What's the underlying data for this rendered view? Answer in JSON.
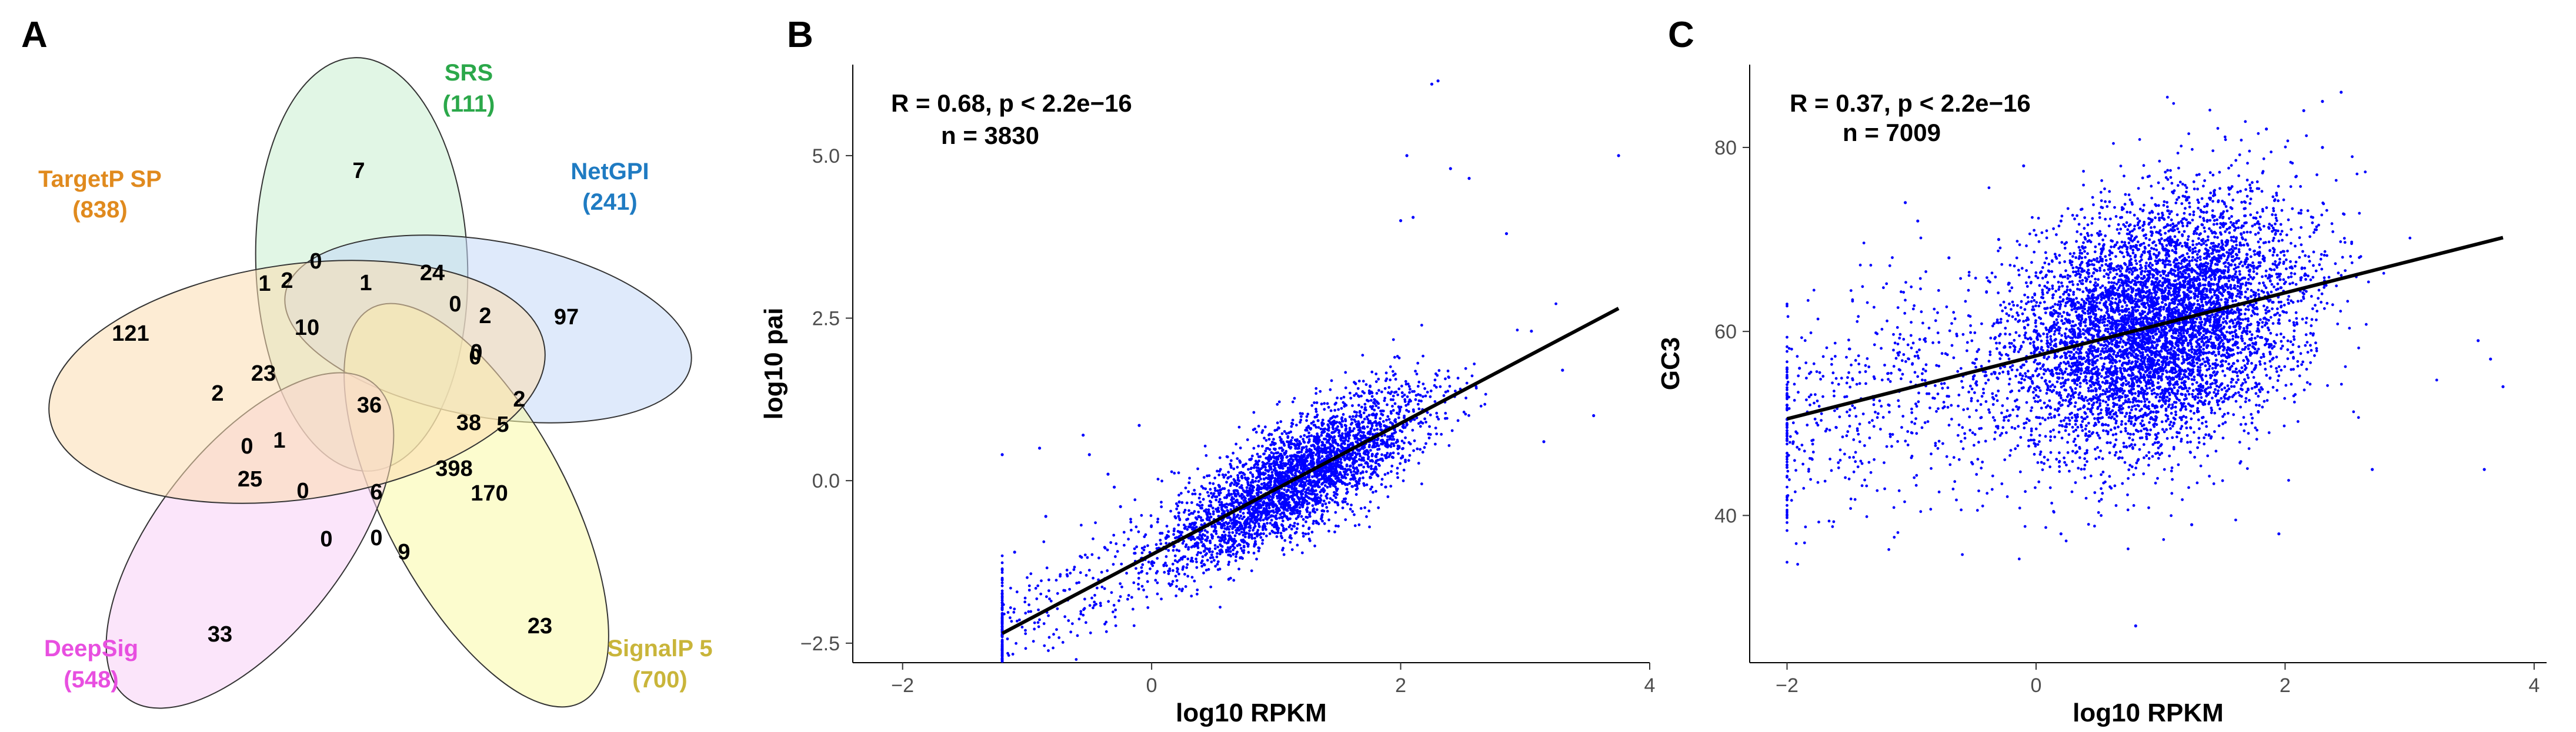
{
  "panels": {
    "a": {
      "letter": "A",
      "sets": [
        {
          "name": "SRS",
          "count": "(111)",
          "color": "#2BA84A",
          "fill": "#c9efcf"
        },
        {
          "name": "NetGPI",
          "count": "(241)",
          "color": "#1F7BC2",
          "fill": "#c4d8f7"
        },
        {
          "name": "SignalP 5",
          "count": "(700)",
          "color": "#C9B53A",
          "fill": "#fafaa6"
        },
        {
          "name": "DeepSig",
          "count": "(548)",
          "color": "#E84FE0",
          "fill": "#f8cff5"
        },
        {
          "name": "TargetP SP",
          "count": "(838)",
          "color": "#E08A1E",
          "fill": "#fbdcb0"
        }
      ],
      "region_counts": [
        "7",
        "24",
        "0",
        "1",
        "2",
        "0",
        "1",
        "10",
        "0",
        "2",
        "97",
        "121",
        "0",
        "2",
        "23",
        "36",
        "38",
        "2",
        "5",
        "0",
        "1",
        "398",
        "25",
        "170",
        "0",
        "6",
        "0",
        "0",
        "9",
        "33",
        "23"
      ]
    },
    "b": {
      "letter": "B",
      "annotation_line1": "R = 0.68, p < 2.2e−16",
      "annotation_line2": "n = 3830"
    },
    "c": {
      "letter": "C",
      "annotation_line1": "R = 0.37, p < 2.2e−16",
      "annotation_line2": "n = 7009"
    }
  },
  "chart_data": [
    {
      "type": "venn",
      "title": "",
      "sets": [
        "SRS",
        "NetGPI",
        "SignalP 5",
        "DeepSig",
        "TargetP SP"
      ],
      "set_sizes": [
        111,
        241,
        700,
        548,
        838
      ],
      "region_values": [
        7,
        24,
        0,
        1,
        2,
        0,
        1,
        10,
        0,
        2,
        97,
        121,
        0,
        2,
        23,
        36,
        38,
        2,
        5,
        0,
        1,
        398,
        25,
        170,
        0,
        6,
        0,
        0,
        9,
        33,
        23
      ]
    },
    {
      "type": "scatter",
      "title": "",
      "xlabel": "log10 RPKM",
      "ylabel": "log10  pai",
      "xlim": [
        -2.4,
        4.0
      ],
      "ylim": [
        -2.8,
        6.4
      ],
      "xticks": [
        -2,
        0,
        2,
        4
      ],
      "yticks": [
        -2.5,
        0.0,
        2.5,
        5.0
      ],
      "ytick_labels": [
        "−2.5",
        "0.0",
        "2.5",
        "5.0"
      ],
      "xtick_labels": [
        "−2",
        "0",
        "2",
        "4"
      ],
      "n": 3830,
      "point_color": "#0000ff",
      "cloud": {
        "x_center": 1.2,
        "x_sd": 0.5,
        "y_mean_at_x": [
          -0.75,
          0.63
        ],
        "y_sd": 0.42
      },
      "outliers": [
        [
          2.25,
          6.1
        ],
        [
          2.3,
          6.15
        ],
        [
          2.05,
          5.0
        ],
        [
          3.75,
          5.0
        ],
        [
          2.4,
          4.8
        ],
        [
          2.55,
          4.65
        ],
        [
          2.0,
          4.0
        ],
        [
          2.1,
          4.05
        ],
        [
          2.85,
          3.8
        ],
        [
          -1.2,
          0.4
        ],
        [
          -1.1,
          -1.1
        ],
        [
          -0.9,
          0.5
        ],
        [
          -0.55,
          0.7
        ],
        [
          -0.5,
          0.4
        ],
        [
          -0.35,
          0.1
        ],
        [
          -0.3,
          -0.1
        ],
        [
          -0.25,
          -0.4
        ],
        [
          -0.85,
          -0.55
        ],
        [
          -0.1,
          0.85
        ],
        [
          3.3,
          1.7
        ],
        [
          3.55,
          1.0
        ],
        [
          3.15,
          0.6
        ],
        [
          3.05,
          2.3
        ]
      ],
      "fit_line": {
        "x": [
          -1.2,
          3.75
        ],
        "y": [
          -2.35,
          2.65
        ]
      },
      "ypos_annotation": "top-left"
    },
    {
      "type": "scatter",
      "title": "",
      "xlabel": "log10 RPKM",
      "ylabel": "GC3",
      "xlim": [
        -2.3,
        4.1
      ],
      "ylim": [
        24,
        89
      ],
      "xticks": [
        -2,
        0,
        2,
        4
      ],
      "yticks": [
        40,
        60,
        80
      ],
      "ytick_labels": [
        "40",
        "60",
        "80"
      ],
      "xtick_labels": [
        "−2",
        "0",
        "2",
        "4"
      ],
      "n": 7009,
      "point_color": "#0000ff",
      "cloud": {
        "x_center": 1.0,
        "x_sd": 0.55,
        "y_mean_at_x": [
          57.4,
          62.4
        ],
        "y_sd": 6.5
      },
      "outliers": [
        [
          2.45,
          86
        ],
        [
          2.3,
          85
        ],
        [
          2.15,
          84
        ],
        [
          1.85,
          82
        ],
        [
          2.3,
          80
        ],
        [
          0.8,
          28
        ],
        [
          1.25,
          39
        ],
        [
          0.2,
          38
        ],
        [
          1.95,
          38
        ],
        [
          2.7,
          45
        ],
        [
          3.55,
          59
        ],
        [
          3.75,
          54
        ],
        [
          3.65,
          57
        ],
        [
          3.6,
          45
        ],
        [
          -2.0,
          52
        ],
        [
          -1.95,
          48
        ],
        [
          -1.9,
          56
        ],
        [
          -0.95,
          72
        ],
        [
          -1.05,
          74
        ],
        [
          -0.7,
          68
        ],
        [
          -0.3,
          70
        ],
        [
          0.2,
          72
        ],
        [
          -0.1,
          78
        ]
      ],
      "fit_line": {
        "x": [
          -2.0,
          3.75
        ],
        "y": [
          50.5,
          70.2
        ]
      }
    }
  ]
}
